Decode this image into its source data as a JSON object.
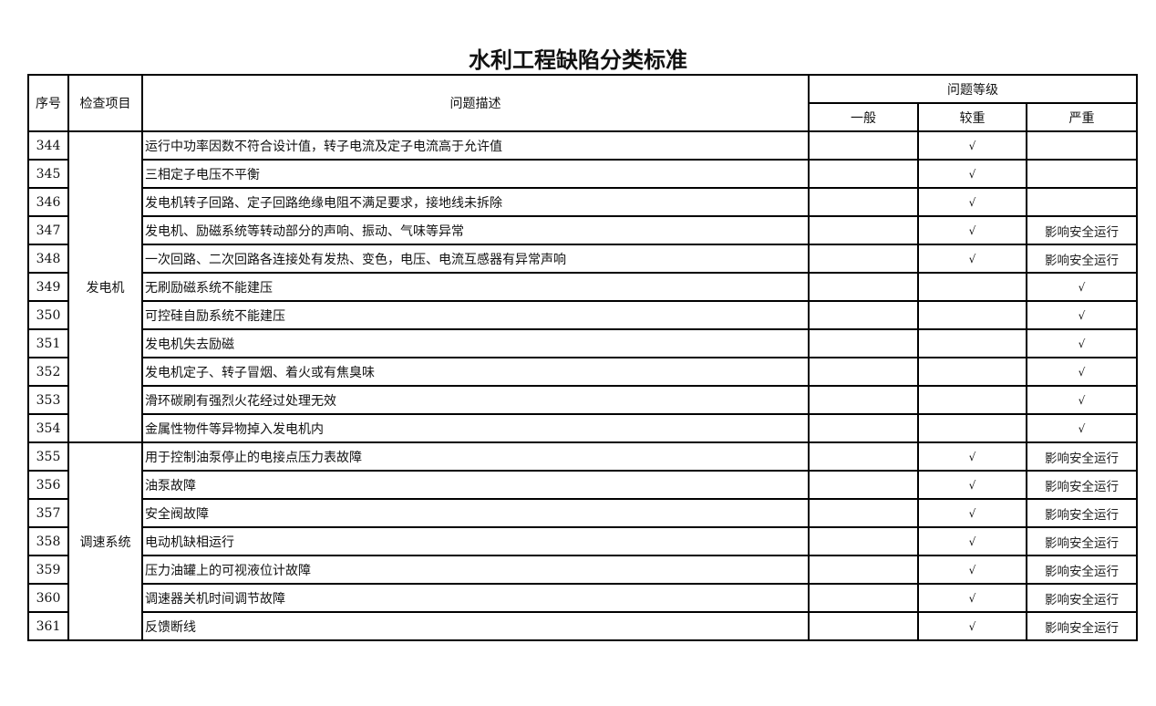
{
  "title": "水利工程缺陷分类标准",
  "headers": {
    "seq": "序号",
    "item": "检查项目",
    "desc": "问题描述",
    "level": "问题等级",
    "general": "一般",
    "moderate": "较重",
    "serious": "严重"
  },
  "groups": [
    {
      "item": "发电机",
      "rows": [
        {
          "seq": "344",
          "desc": "运行中功率因数不符合设计值，转子电流及定子电流高于允许值",
          "general": "",
          "moderate": "√",
          "serious": ""
        },
        {
          "seq": "345",
          "desc": "三相定子电压不平衡",
          "general": "",
          "moderate": "√",
          "serious": ""
        },
        {
          "seq": "346",
          "desc": "发电机转子回路、定子回路绝缘电阻不满足要求，接地线未拆除",
          "general": "",
          "moderate": "√",
          "serious": ""
        },
        {
          "seq": "347",
          "desc": "发电机、励磁系统等转动部分的声响、振动、气味等异常",
          "general": "",
          "moderate": "√",
          "serious": "影响安全运行"
        },
        {
          "seq": "348",
          "desc": "一次回路、二次回路各连接处有发热、变色，电压、电流互感器有异常声响",
          "general": "",
          "moderate": "√",
          "serious": "影响安全运行"
        },
        {
          "seq": "349",
          "desc": "无刷励磁系统不能建压",
          "general": "",
          "moderate": "",
          "serious": "√"
        },
        {
          "seq": "350",
          "desc": "可控硅自励系统不能建压",
          "general": "",
          "moderate": "",
          "serious": "√"
        },
        {
          "seq": "351",
          "desc": "发电机失去励磁",
          "general": "",
          "moderate": "",
          "serious": "√"
        },
        {
          "seq": "352",
          "desc": "发电机定子、转子冒烟、着火或有焦臭味",
          "general": "",
          "moderate": "",
          "serious": "√"
        },
        {
          "seq": "353",
          "desc": "滑环碳刷有强烈火花经过处理无效",
          "general": "",
          "moderate": "",
          "serious": "√"
        },
        {
          "seq": "354",
          "desc": "金属性物件等异物掉入发电机内",
          "general": "",
          "moderate": "",
          "serious": "√"
        }
      ]
    },
    {
      "item": "调速系统",
      "rows": [
        {
          "seq": "355",
          "desc": "用于控制油泵停止的电接点压力表故障",
          "general": "",
          "moderate": "√",
          "serious": "影响安全运行"
        },
        {
          "seq": "356",
          "desc": "油泵故障",
          "general": "",
          "moderate": "√",
          "serious": "影响安全运行"
        },
        {
          "seq": "357",
          "desc": "安全阀故障",
          "general": "",
          "moderate": "√",
          "serious": "影响安全运行"
        },
        {
          "seq": "358",
          "desc": "电动机缺相运行",
          "general": "",
          "moderate": "√",
          "serious": "影响安全运行"
        },
        {
          "seq": "359",
          "desc": "压力油罐上的可视液位计故障",
          "general": "",
          "moderate": "√",
          "serious": "影响安全运行"
        },
        {
          "seq": "360",
          "desc": "调速器关机时间调节故障",
          "general": "",
          "moderate": "√",
          "serious": "影响安全运行"
        },
        {
          "seq": "361",
          "desc": "反馈断线",
          "general": "",
          "moderate": "√",
          "serious": "影响安全运行"
        }
      ]
    }
  ]
}
